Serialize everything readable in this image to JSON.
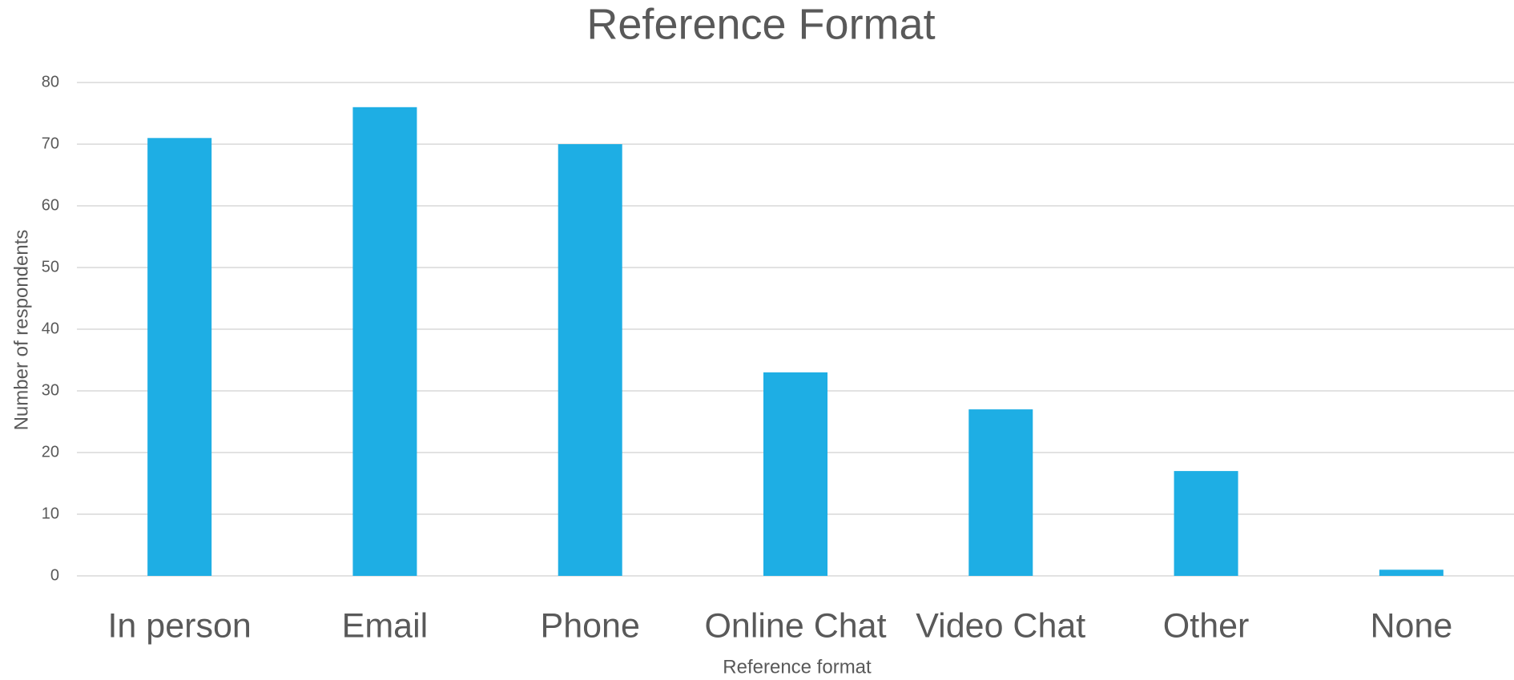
{
  "chart_data": {
    "type": "bar",
    "title": "Reference Format",
    "x_label": "Reference format",
    "y_label": "Number of respondents",
    "categories": [
      "In person",
      "Email",
      "Phone",
      "Online Chat",
      "Video Chat",
      "Other",
      "None"
    ],
    "values": [
      71,
      76,
      70,
      33,
      27,
      17,
      1
    ],
    "color": "#1eaee4",
    "ylim": [
      0,
      80
    ],
    "yticks": [
      0,
      10,
      20,
      30,
      40,
      50,
      60,
      70,
      80
    ],
    "grid": true
  }
}
